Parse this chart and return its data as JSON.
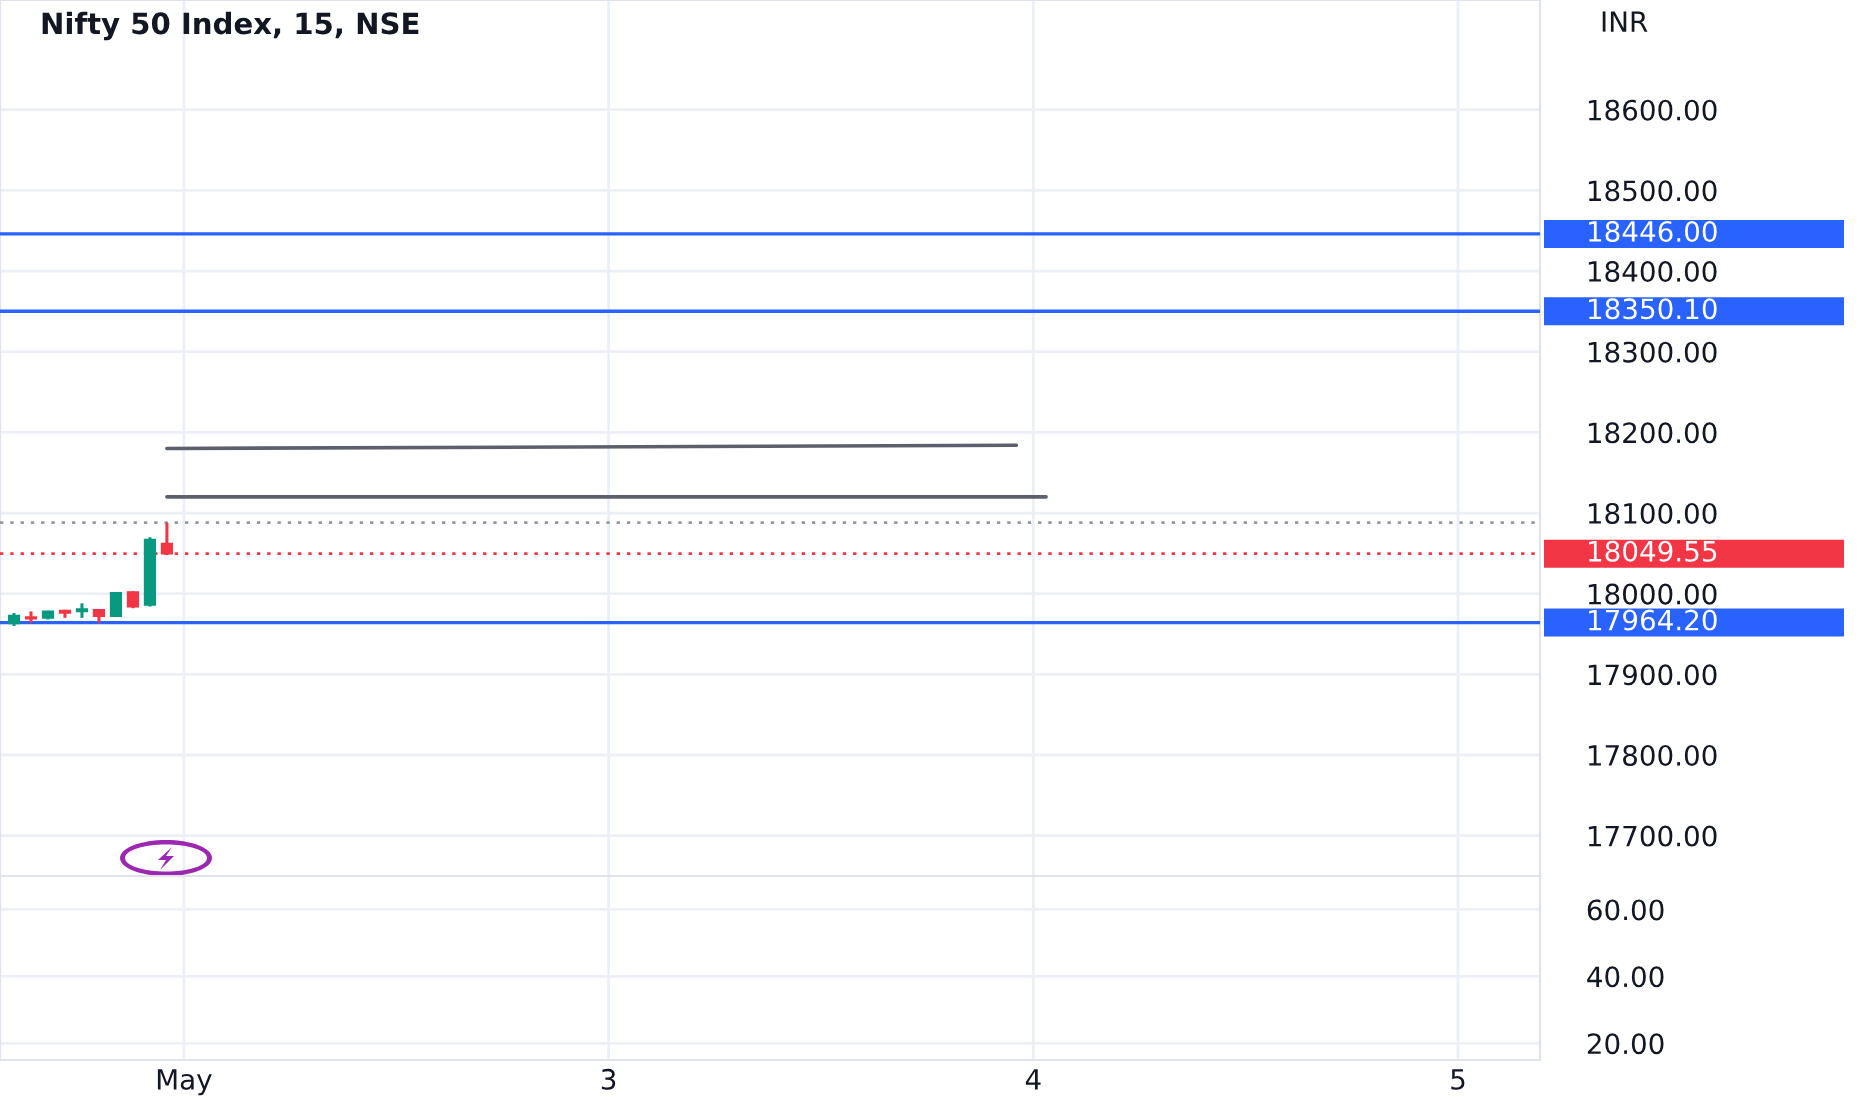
{
  "chart_data": [
    {
      "type": "candlestick",
      "title": "Nifty 50 Index, 15, NSE",
      "ylabel": "INR",
      "x": [
        1.6,
        1.64,
        1.68,
        1.72,
        1.76,
        1.8,
        1.84,
        1.88,
        1.92,
        1.96
      ],
      "ohlc": [
        [
          17963,
          17976,
          17960,
          17973
        ],
        [
          17971,
          17978,
          17964,
          17969
        ],
        [
          17970,
          17979,
          17968,
          17978
        ],
        [
          17979,
          17980,
          17970,
          17976
        ],
        [
          17978,
          17988,
          17970,
          17981
        ],
        [
          17980,
          17981,
          17964,
          17972
        ],
        [
          17972,
          18002,
          17971,
          18001
        ],
        [
          18002,
          18003,
          17982,
          17984
        ],
        [
          17986,
          18070,
          17984,
          18067
        ],
        [
          18062,
          18088,
          18048,
          18049.55
        ]
      ],
      "colors": [
        "#089981",
        "#f23645",
        "#089981",
        "#f23645",
        "#089981",
        "#f23645",
        "#089981",
        "#f23645",
        "#089981",
        "#f23645"
      ],
      "series": [
        {
          "type": "line",
          "x": [
            1.96,
            3.96
          ],
          "values": [
            18180,
            18184
          ],
          "color": "#5d606b"
        },
        {
          "type": "line",
          "x": [
            1.96,
            4.03
          ],
          "values": [
            18120,
            18120
          ],
          "color": "#5d606b"
        }
      ],
      "ref_lines": [
        {
          "axis": "y",
          "value": 18446.0,
          "label": "18446.00",
          "color": "#2962ff",
          "line_style": "solid"
        },
        {
          "axis": "y",
          "value": 18350.1,
          "label": "18350.10",
          "color": "#2962ff",
          "line_style": "solid"
        },
        {
          "axis": "y",
          "value": 17964.2,
          "label": "17964.20",
          "color": "#2962ff",
          "line_style": "solid"
        },
        {
          "axis": "y",
          "value": 18049.55,
          "label": "18049.55",
          "color": "#f23645",
          "line_style": "dotted"
        },
        {
          "axis": "y",
          "value": 18088,
          "color": "#9598a1",
          "line_style": "dotted"
        }
      ],
      "xlim": [
        1.567,
        5.193
      ],
      "xticks": [
        {
          "value": 2,
          "label": null
        },
        {
          "value": 3,
          "label": null
        },
        {
          "value": 4,
          "label": null
        },
        {
          "value": 5,
          "label": null
        }
      ],
      "ylim": [
        17650,
        18736
      ],
      "yticks": [
        {
          "value": 17700,
          "label": "17700.00"
        },
        {
          "value": 17800,
          "label": "17800.00"
        },
        {
          "value": 17900,
          "label": "17900.00"
        },
        {
          "value": 18000,
          "label": "18000.00"
        },
        {
          "value": 18100,
          "label": "18100.00"
        },
        {
          "value": 18200,
          "label": "18200.00"
        },
        {
          "value": 18300,
          "label": "18300.00"
        },
        {
          "value": 18400,
          "label": "18400.00"
        },
        {
          "value": 18500,
          "label": "18500.00"
        },
        {
          "value": 18600,
          "label": "18600.00"
        }
      ],
      "grid": true,
      "tick_labels": "y"
    },
    {
      "type": "line",
      "xlim": [
        1.567,
        5.193
      ],
      "xticks": [
        {
          "value": 2,
          "label": "May"
        },
        3,
        4,
        5
      ],
      "ylim": [
        15,
        70
      ],
      "yticks": [
        {
          "value": 20,
          "label": "20.00"
        },
        {
          "value": 40,
          "label": "40.00"
        },
        {
          "value": 60,
          "label": "60.00"
        }
      ],
      "grid": true
    }
  ]
}
